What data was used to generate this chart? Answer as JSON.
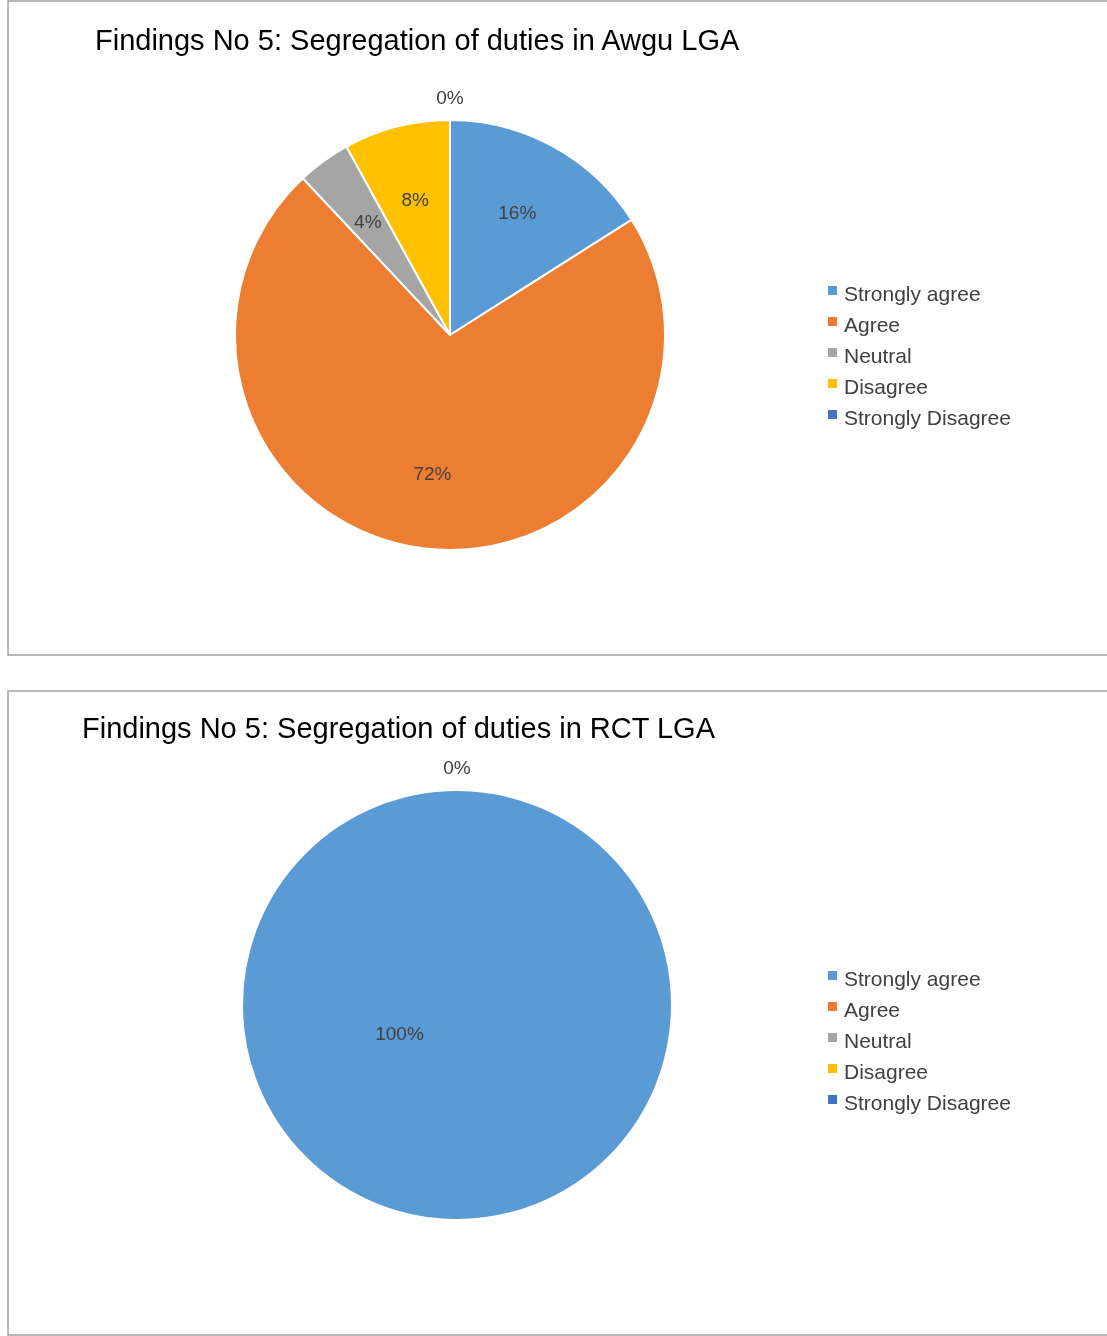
{
  "chart_data": [
    {
      "type": "pie",
      "title": "Findings No 5: Segregation of duties in Awgu LGA",
      "categories": [
        "Strongly agree",
        "Agree",
        "Neutral",
        "Disagree",
        "Strongly Disagree"
      ],
      "values": [
        16,
        72,
        4,
        8,
        0
      ],
      "colors": [
        "#5b9bd5",
        "#ed7d31",
        "#a5a5a5",
        "#ffc000",
        "#4472c4"
      ],
      "value_labels": [
        "16%",
        "72%",
        "4%",
        "8%",
        "0%"
      ],
      "legend": "right"
    },
    {
      "type": "pie",
      "title": "Findings No 5: Segregation of duties in RCT LGA",
      "categories": [
        "Strongly agree",
        "Agree",
        "Neutral",
        "Disagree",
        "Strongly Disagree"
      ],
      "values": [
        100,
        0,
        0,
        0,
        0
      ],
      "colors": [
        "#5b9bd5",
        "#ed7d31",
        "#a5a5a5",
        "#ffc000",
        "#4472c4"
      ],
      "value_labels": [
        "100%",
        null,
        null,
        null,
        "0%"
      ],
      "legend": "right"
    }
  ]
}
